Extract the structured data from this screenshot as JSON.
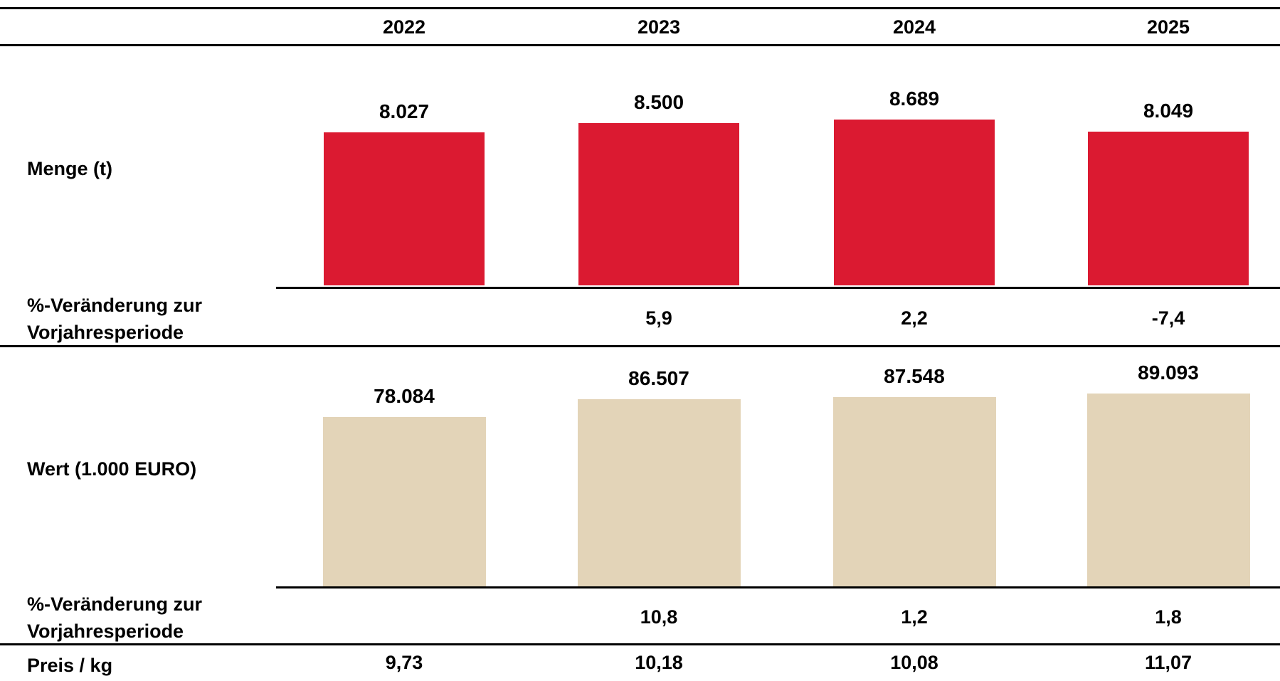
{
  "chart_data": {
    "type": "bar",
    "years": [
      "2022",
      "2023",
      "2024",
      "2025"
    ],
    "panels": [
      {
        "label": "Menge (t)",
        "values": [
          "8.027",
          "8.500",
          "8.689",
          "8.049"
        ],
        "numeric": [
          8027,
          8500,
          8689,
          8049
        ],
        "color": "#DB1A31",
        "change_label": [
          "%-Veränderung zur",
          "Vorjahresperiode"
        ],
        "changes": [
          "",
          "5,9",
          "2,2",
          "-7,4"
        ]
      },
      {
        "label": "Wert (1.000 EURO)",
        "values": [
          "78.084",
          "86.507",
          "87.548",
          "89.093"
        ],
        "numeric": [
          78084,
          86507,
          87548,
          89093
        ],
        "color": "#E3D4B8",
        "change_label": [
          "%-Veränderung zur",
          "Vorjahresperiode"
        ],
        "changes": [
          "",
          "10,8",
          "1,2",
          "1,8"
        ]
      }
    ],
    "price_label": "Preis / kg",
    "prices": [
      "9,73",
      "10,18",
      "10,08",
      "11,07"
    ]
  }
}
